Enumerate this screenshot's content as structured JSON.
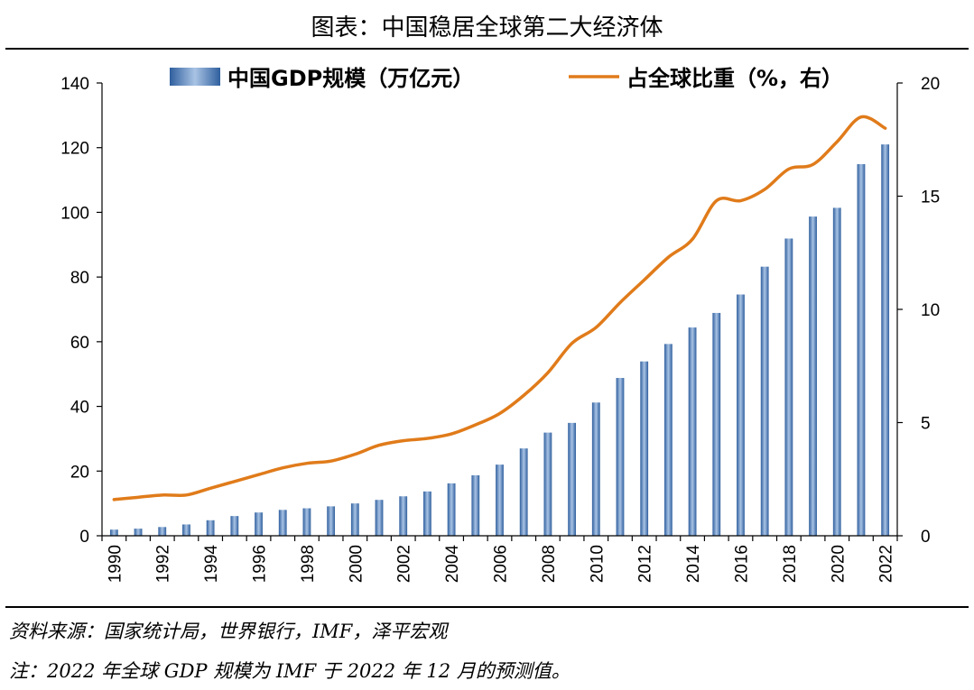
{
  "title": "图表：中国稳居全球第二大经济体",
  "notes": {
    "source": "资料来源：国家统计局，世界银行，IMF，泽平宏观",
    "footnote": "注：2022 年全球 GDP 规模为 IMF 于 2022 年 12 月的预测值。"
  },
  "colors": {
    "bar_dark": "#2f5f9e",
    "bar_light": "#a9c3e4",
    "line": "#e07b1a",
    "axis": "#000000"
  },
  "chart_data": {
    "type": "bar+line",
    "x": [
      1990,
      1991,
      1992,
      1993,
      1994,
      1995,
      1996,
      1997,
      1998,
      1999,
      2000,
      2001,
      2002,
      2003,
      2004,
      2005,
      2006,
      2007,
      2008,
      2009,
      2010,
      2011,
      2012,
      2013,
      2014,
      2015,
      2016,
      2017,
      2018,
      2019,
      2020,
      2021,
      2022
    ],
    "x_tick_labels": [
      "1990",
      "1992",
      "1994",
      "1996",
      "1998",
      "2000",
      "2002",
      "2004",
      "2006",
      "2008",
      "2010",
      "2012",
      "2014",
      "2016",
      "2018",
      "2020",
      "2022"
    ],
    "series": [
      {
        "name": "中国GDP规模（万亿元）",
        "type": "bar",
        "axis": "left",
        "values": [
          1.9,
          2.2,
          2.7,
          3.5,
          4.8,
          6.1,
          7.2,
          8.0,
          8.5,
          9.1,
          10.0,
          11.1,
          12.2,
          13.7,
          16.2,
          18.7,
          22.0,
          27.0,
          31.9,
          34.9,
          41.2,
          48.8,
          53.9,
          59.3,
          64.4,
          68.9,
          74.6,
          83.2,
          91.9,
          98.7,
          101.4,
          114.9,
          121.0
        ]
      },
      {
        "name": "占全球比重（%，右）",
        "type": "line",
        "axis": "right",
        "values": [
          1.6,
          1.7,
          1.8,
          1.8,
          2.1,
          2.4,
          2.7,
          3.0,
          3.2,
          3.3,
          3.6,
          4.0,
          4.2,
          4.3,
          4.5,
          4.9,
          5.4,
          6.2,
          7.2,
          8.5,
          9.2,
          10.3,
          11.3,
          12.3,
          13.1,
          14.8,
          14.8,
          15.3,
          16.2,
          16.4,
          17.4,
          18.5,
          18.0
        ]
      }
    ],
    "y_left": {
      "min": 0,
      "max": 140,
      "ticks": [
        "0",
        "20",
        "40",
        "60",
        "80",
        "100",
        "120",
        "140"
      ]
    },
    "y_right": {
      "min": 0,
      "max": 20,
      "ticks": [
        "0",
        "5",
        "10",
        "15",
        "20"
      ]
    },
    "legend": {
      "position": "top"
    },
    "grid": false
  }
}
